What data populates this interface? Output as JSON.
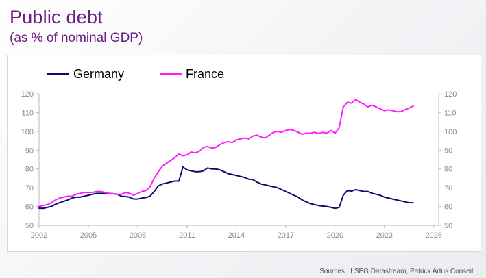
{
  "header": {
    "title": "Public debt",
    "subtitle": "(as % of nominal GDP)"
  },
  "footer": {
    "source": "Sources : LSEG Datastream, Patrick Artus Conseil."
  },
  "colors": {
    "germany": "#0b0b6e",
    "france": "#ff1aff",
    "title": "#6a1f86"
  },
  "chart_data": {
    "type": "line",
    "title": "Public debt",
    "subtitle": "(as % of nominal GDP)",
    "xlabel": "",
    "ylabel": "",
    "xlim": [
      2002,
      2026.3
    ],
    "ylim": [
      50,
      120
    ],
    "x_ticks": [
      "2002",
      "2005",
      "2008",
      "2011",
      "2014",
      "2017",
      "2020",
      "2023",
      "2026"
    ],
    "y_ticks": [
      "50",
      "60",
      "70",
      "80",
      "90",
      "100",
      "110",
      "120"
    ],
    "y_ticks_right": [
      "50",
      "60",
      "70",
      "80",
      "90",
      "100",
      "110",
      "120"
    ],
    "legend_position": "top-left",
    "grid": false,
    "x": [
      2002.0,
      2002.25,
      2002.5,
      2002.75,
      2003.0,
      2003.25,
      2003.5,
      2003.75,
      2004.0,
      2004.25,
      2004.5,
      2004.75,
      2005.0,
      2005.25,
      2005.5,
      2005.75,
      2006.0,
      2006.25,
      2006.5,
      2006.75,
      2007.0,
      2007.25,
      2007.5,
      2007.75,
      2008.0,
      2008.25,
      2008.5,
      2008.75,
      2009.0,
      2009.25,
      2009.5,
      2009.75,
      2010.0,
      2010.25,
      2010.5,
      2010.75,
      2011.0,
      2011.25,
      2011.5,
      2011.75,
      2012.0,
      2012.25,
      2012.5,
      2012.75,
      2013.0,
      2013.25,
      2013.5,
      2013.75,
      2014.0,
      2014.25,
      2014.5,
      2014.75,
      2015.0,
      2015.25,
      2015.5,
      2015.75,
      2016.0,
      2016.25,
      2016.5,
      2016.75,
      2017.0,
      2017.25,
      2017.5,
      2017.75,
      2018.0,
      2018.25,
      2018.5,
      2018.75,
      2019.0,
      2019.25,
      2019.5,
      2019.75,
      2020.0,
      2020.25,
      2020.5,
      2020.75,
      2021.0,
      2021.25,
      2021.5,
      2021.75,
      2022.0,
      2022.25,
      2022.5,
      2022.75,
      2023.0,
      2023.25,
      2023.5,
      2023.75,
      2024.0,
      2024.25,
      2024.5,
      2024.75
    ],
    "series": [
      {
        "name": "Germany",
        "color": "#0b0b6e",
        "values": [
          59.1,
          59.0,
          59.5,
          60.0,
          61.2,
          62.0,
          62.8,
          63.5,
          64.5,
          65.0,
          65.0,
          65.5,
          66.0,
          66.5,
          67.0,
          67.0,
          67.0,
          67.0,
          66.8,
          66.5,
          65.5,
          65.3,
          65.0,
          64.0,
          64.0,
          64.5,
          64.8,
          65.5,
          68.0,
          71.0,
          72.0,
          72.5,
          73.0,
          73.5,
          73.5,
          81.0,
          79.5,
          79.0,
          78.5,
          78.5,
          79.0,
          80.5,
          80.0,
          80.0,
          79.5,
          78.5,
          77.5,
          77.0,
          76.5,
          76.0,
          75.5,
          74.5,
          74.3,
          73.0,
          72.0,
          71.5,
          71.0,
          70.5,
          70.0,
          69.0,
          68.0,
          67.0,
          66.0,
          65.0,
          63.5,
          62.5,
          61.5,
          61.0,
          60.5,
          60.2,
          60.0,
          59.5,
          59.0,
          59.5,
          66.0,
          68.5,
          68.2,
          69.0,
          68.5,
          68.0,
          68.0,
          67.0,
          66.5,
          66.0,
          65.0,
          64.5,
          64.0,
          63.5,
          63.0,
          62.5,
          62.0,
          62.0
        ]
      },
      {
        "name": "France",
        "color": "#ff1aff",
        "values": [
          60.0,
          60.5,
          61.0,
          62.0,
          63.5,
          64.5,
          65.0,
          65.5,
          65.5,
          66.5,
          67.0,
          67.5,
          67.5,
          67.5,
          68.0,
          68.0,
          67.5,
          67.0,
          66.8,
          66.5,
          66.5,
          67.5,
          67.0,
          66.0,
          67.0,
          68.0,
          68.5,
          70.5,
          75.0,
          78.5,
          81.5,
          83.0,
          84.5,
          86.0,
          88.0,
          87.0,
          87.5,
          89.0,
          88.5,
          89.5,
          91.5,
          92.0,
          91.0,
          91.5,
          93.0,
          94.0,
          94.5,
          94.0,
          95.5,
          96.0,
          96.5,
          96.0,
          97.5,
          98.0,
          97.0,
          96.5,
          98.0,
          99.5,
          100.0,
          99.5,
          100.5,
          101.0,
          100.5,
          99.5,
          98.5,
          99.0,
          99.0,
          99.5,
          98.8,
          99.5,
          99.0,
          100.5,
          99.0,
          102.0,
          113.0,
          115.5,
          115.0,
          117.0,
          115.5,
          114.5,
          113.0,
          114.0,
          113.0,
          112.0,
          111.0,
          111.5,
          111.0,
          110.5,
          110.5,
          111.5,
          112.5,
          113.5
        ]
      }
    ]
  }
}
